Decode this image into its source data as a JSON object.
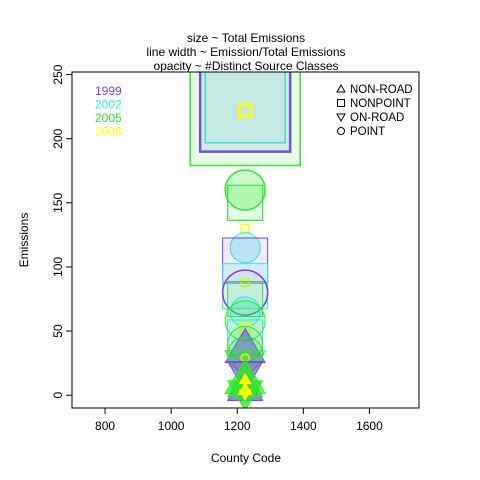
{
  "chart_data": {
    "type": "scatter",
    "title_lines": [
      "size ~ Total Emissions",
      "line width ~ Emission/Total Emissions",
      "opacity ~ #Distinct Source Classes"
    ],
    "xlabel": "County Code",
    "ylabel": "Emissions",
    "xlim": [
      700,
      1750
    ],
    "ylim": [
      -10,
      252
    ],
    "x_ticks": [
      800,
      1000,
      1200,
      1400,
      1600
    ],
    "y_ticks": [
      0,
      50,
      100,
      150,
      200,
      250
    ],
    "grid": false,
    "legend_years": {
      "placement": "top-left",
      "entries": [
        {
          "label": "1999",
          "color": "#7b3ff2"
        },
        {
          "label": "2002",
          "color": "#33e6e6"
        },
        {
          "label": "2005",
          "color": "#2ee62e"
        },
        {
          "label": "2008",
          "color": "#ffff00"
        }
      ]
    },
    "legend_types": {
      "placement": "top-right",
      "entries": [
        {
          "label": "NON-ROAD",
          "icon": "triangle-up-icon"
        },
        {
          "label": "NONPOINT",
          "icon": "square-icon"
        },
        {
          "label": "ON-ROAD",
          "icon": "triangle-down-icon"
        },
        {
          "label": "POINT",
          "icon": "circle-icon"
        }
      ]
    },
    "points": [
      {
        "x": 1224,
        "y": 225,
        "year": "1999",
        "type": "NONPOINT",
        "size": 9,
        "lw": 2.5,
        "fill": 0.12
      },
      {
        "x": 1224,
        "y": 228,
        "year": "2002",
        "type": "NONPOINT",
        "size": 8,
        "lw": 1.5,
        "fill": 0.12
      },
      {
        "x": 1224,
        "y": 222,
        "year": "2005",
        "type": "NONPOINT",
        "size": 11,
        "lw": 1.5,
        "fill": 0.12
      },
      {
        "x": 1224,
        "y": 222,
        "year": "2008",
        "type": "NONPOINT",
        "size": 1.2,
        "lw": 2.5,
        "fill": 0.05
      },
      {
        "x": 1224,
        "y": 160,
        "year": "2005",
        "type": "POINT",
        "size": 4,
        "lw": 1.5,
        "fill": 0.25
      },
      {
        "x": 1224,
        "y": 150,
        "year": "2005",
        "type": "NONPOINT",
        "size": 3.5,
        "lw": 1.2,
        "fill": 0.15
      },
      {
        "x": 1224,
        "y": 130,
        "year": "2008",
        "type": "NONPOINT",
        "size": 0.8,
        "lw": 1.5,
        "fill": 0.08
      },
      {
        "x": 1224,
        "y": 115,
        "year": "2002",
        "type": "POINT",
        "size": 3,
        "lw": 1.0,
        "fill": 0.3
      },
      {
        "x": 1224,
        "y": 105,
        "year": "1999",
        "type": "NONPOINT",
        "size": 4.5,
        "lw": 1.0,
        "fill": 0.1
      },
      {
        "x": 1224,
        "y": 88,
        "year": "2008",
        "type": "NONPOINT",
        "size": 0.8,
        "lw": 1.5,
        "fill": 0.1
      },
      {
        "x": 1224,
        "y": 85,
        "year": "2002",
        "type": "NONPOINT",
        "size": 4.5,
        "lw": 1.0,
        "fill": 0.15
      },
      {
        "x": 1224,
        "y": 80,
        "year": "1999",
        "type": "POINT",
        "size": 4.5,
        "lw": 1.5,
        "fill": 0.05
      },
      {
        "x": 1224,
        "y": 75,
        "year": "2005",
        "type": "NONPOINT",
        "size": 3.5,
        "lw": 1.0,
        "fill": 0.15
      },
      {
        "x": 1224,
        "y": 65,
        "year": "2002",
        "type": "POINT",
        "size": 3,
        "lw": 1.0,
        "fill": 0.25
      },
      {
        "x": 1224,
        "y": 58,
        "year": "2005",
        "type": "POINT",
        "size": 4,
        "lw": 1.0,
        "fill": 0.2
      },
      {
        "x": 1224,
        "y": 52,
        "year": "2008",
        "type": "NONPOINT",
        "size": 1.0,
        "lw": 2.0,
        "fill": 0.15
      },
      {
        "x": 1224,
        "y": 45,
        "year": "2002",
        "type": "NONPOINT",
        "size": 3.5,
        "lw": 1.0,
        "fill": 0.15
      },
      {
        "x": 1224,
        "y": 40,
        "year": "2005",
        "type": "POINT",
        "size": 3.5,
        "lw": 1.0,
        "fill": 0.2
      },
      {
        "x": 1224,
        "y": 36,
        "year": "1999",
        "type": "NON-ROAD",
        "size": 4,
        "lw": 1.0,
        "fill": 0.6
      },
      {
        "x": 1224,
        "y": 32,
        "year": "2005",
        "type": "POINT",
        "size": 3.5,
        "lw": 1.0,
        "fill": 0.25
      },
      {
        "x": 1224,
        "y": 29,
        "year": "2008",
        "type": "POINT",
        "size": 0.8,
        "lw": 2.0,
        "fill": 0.2
      },
      {
        "x": 1224,
        "y": 24,
        "year": "2005",
        "type": "ON-ROAD",
        "size": 4,
        "lw": 1.0,
        "fill": 0.35
      },
      {
        "x": 1224,
        "y": 20,
        "year": "2008",
        "type": "NONPOINT",
        "size": 0.8,
        "lw": 2.0,
        "fill": 0.2
      },
      {
        "x": 1224,
        "y": 17,
        "year": "1999",
        "type": "ON-ROAD",
        "size": 3.5,
        "lw": 1.0,
        "fill": 0.6
      },
      {
        "x": 1224,
        "y": 12,
        "year": "2005",
        "type": "NON-ROAD",
        "size": 4,
        "lw": 1.0,
        "fill": 0.7
      },
      {
        "x": 1224,
        "y": 5,
        "year": "1999",
        "type": "NON-ROAD",
        "size": 3.5,
        "lw": 1.0,
        "fill": 0.7
      },
      {
        "x": 1224,
        "y": 8,
        "year": "2005",
        "type": "NON-ROAD",
        "size": 3.5,
        "lw": 1.0,
        "fill": 0.8
      },
      {
        "x": 1224,
        "y": 2,
        "year": "2005",
        "type": "ON-ROAD",
        "size": 3.5,
        "lw": 1.0,
        "fill": 0.8
      },
      {
        "x": 1224,
        "y": 4,
        "year": "2008",
        "type": "NON-ROAD",
        "size": 1.2,
        "lw": 2.0,
        "fill": 0.9
      },
      {
        "x": 1224,
        "y": 1,
        "year": "2008",
        "type": "ON-ROAD",
        "size": 1.0,
        "lw": 2.0,
        "fill": 0.9
      },
      {
        "x": 1224,
        "y": 12,
        "year": "2008",
        "type": "NON-ROAD",
        "size": 1.0,
        "lw": 2.0,
        "fill": 0.9
      }
    ]
  }
}
